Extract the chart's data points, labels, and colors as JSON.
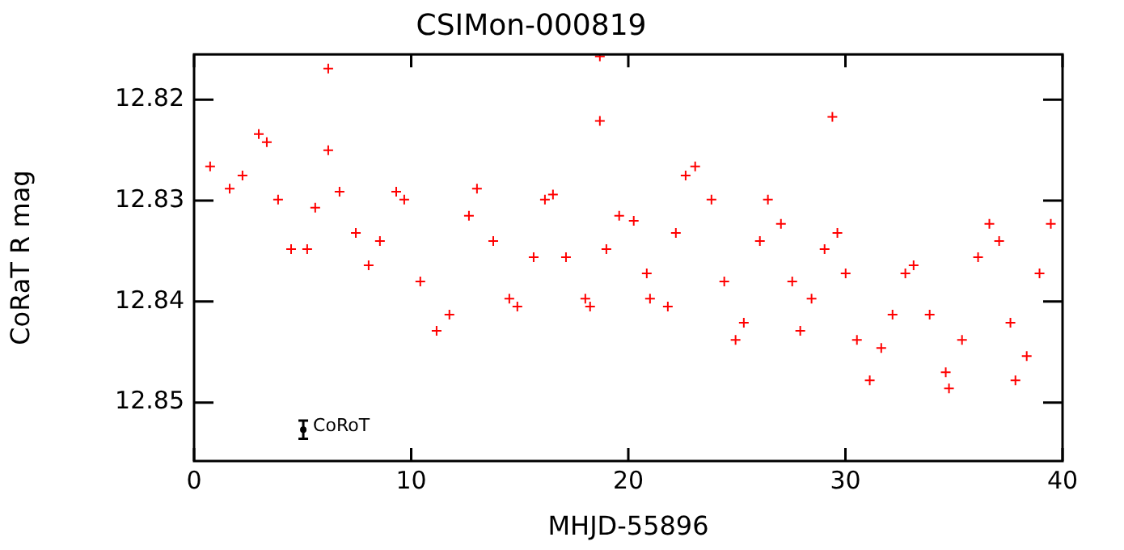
{
  "chart_data": {
    "type": "scatter",
    "title": "CSIMon-000819",
    "xlabel": "MHJD-55896",
    "ylabel": "CoRaT R mag",
    "xlim": [
      0,
      40
    ],
    "xticks": [
      0,
      10,
      20,
      30,
      40
    ],
    "ylim": [
      12.8558,
      12.8155
    ],
    "yticks": [
      12.82,
      12.83,
      12.84,
      12.85
    ],
    "grid": false,
    "legend": false,
    "marker": "cross",
    "series": [
      {
        "color": "#ff0000",
        "x": [
          0.74,
          1.64,
          2.23,
          2.98,
          3.35,
          3.87,
          4.47,
          5.21,
          5.58,
          6.18,
          6.18,
          6.7,
          7.45,
          8.04,
          8.56,
          9.31,
          9.68,
          10.42,
          11.17,
          11.76,
          12.66,
          13.03,
          13.78,
          14.52,
          14.89,
          15.64,
          16.16,
          16.53,
          17.13,
          18.02,
          18.24,
          18.69,
          18.69,
          18.99,
          19.58,
          20.25,
          20.85,
          21.0,
          21.82,
          22.19,
          22.64,
          23.08,
          23.83,
          24.42,
          24.94,
          25.32,
          26.06,
          26.43,
          27.03,
          27.55,
          27.92,
          28.44,
          29.04,
          29.4,
          29.63,
          30.01,
          30.53,
          31.12,
          31.65,
          32.17,
          32.76,
          33.14,
          33.88,
          34.62,
          34.77,
          35.37,
          36.11,
          36.63,
          37.08,
          37.6,
          37.83,
          38.35,
          38.94,
          39.46
        ],
        "values": [
          12.8266,
          12.8288,
          12.8275,
          12.8234,
          12.8242,
          12.8299,
          12.8348,
          12.8348,
          12.8307,
          12.825,
          12.8169,
          12.8291,
          12.8332,
          12.8364,
          12.834,
          12.8291,
          12.8299,
          12.838,
          12.8429,
          12.8413,
          12.8315,
          12.8288,
          12.834,
          12.8397,
          12.8405,
          12.8356,
          12.8299,
          12.8294,
          12.8356,
          12.8397,
          12.8405,
          12.8157,
          12.8221,
          12.8348,
          12.8315,
          12.832,
          12.8372,
          12.8397,
          12.8405,
          12.8332,
          12.8275,
          12.8266,
          12.8299,
          12.838,
          12.8438,
          12.8421,
          12.834,
          12.8299,
          12.8323,
          12.838,
          12.8429,
          12.8397,
          12.8348,
          12.8217,
          12.8332,
          12.8372,
          12.8438,
          12.8478,
          12.8446,
          12.8413,
          12.8372,
          12.8364,
          12.8413,
          12.847,
          12.8486,
          12.8438,
          12.8356,
          12.8323,
          12.834,
          12.8421,
          12.8478,
          12.8454,
          12.8372,
          12.8323
        ]
      },
      {
        "name": "CoRoT",
        "color": "#000000",
        "marker": "circle",
        "x": [
          5.03
        ],
        "values": [
          12.8527
        ],
        "errors": [
          0.0009
        ]
      }
    ]
  }
}
